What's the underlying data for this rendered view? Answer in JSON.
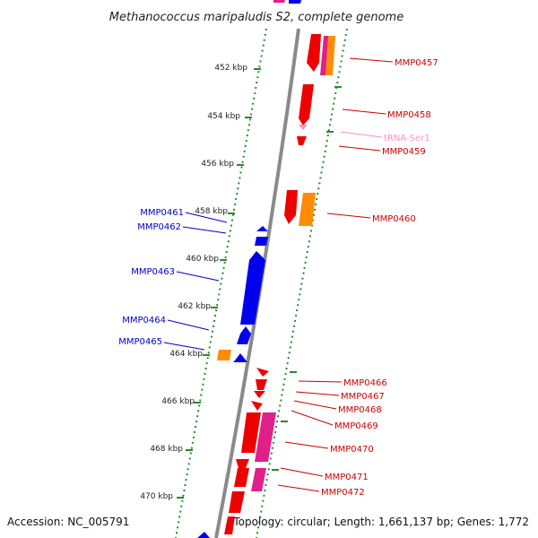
{
  "title": "Methanococcus maripaludis S2, complete genome",
  "footer": {
    "accession": "Accession: NC_005791",
    "summary": "Topology: circular; Length: 1,661,137 bp; Genes: 1,772"
  },
  "colors": {
    "backbone": "#8a8a8a",
    "ruler": "#2a8a2a",
    "cds_forward": "#ff0000",
    "cds_reverse": "#0000ff",
    "rrna_or_other": "#ff8c00",
    "pseudo": "#ff1493",
    "trna": "#ff8fc8",
    "label_forward": "#cc0000",
    "label_reverse": "#0000cc"
  },
  "ticks": [
    "452 kbp",
    "454 kbp",
    "456 kbp",
    "458 kbp",
    "460 kbp",
    "462 kbp",
    "464 kbp",
    "466 kbp",
    "468 kbp",
    "470 kbp"
  ],
  "reverse_labels": [
    "MMP0461",
    "MMP0462",
    "MMP0463",
    "MMP0464",
    "MMP0465"
  ],
  "forward_labels": [
    "MMP0457",
    "MMP0458",
    "tRNA-Ser1",
    "MMP0459",
    "MMP0460",
    "MMP0466",
    "MMP0467",
    "MMP0468",
    "MMP0469",
    "MMP0470",
    "MMP0471",
    "MMP0472"
  ]
}
